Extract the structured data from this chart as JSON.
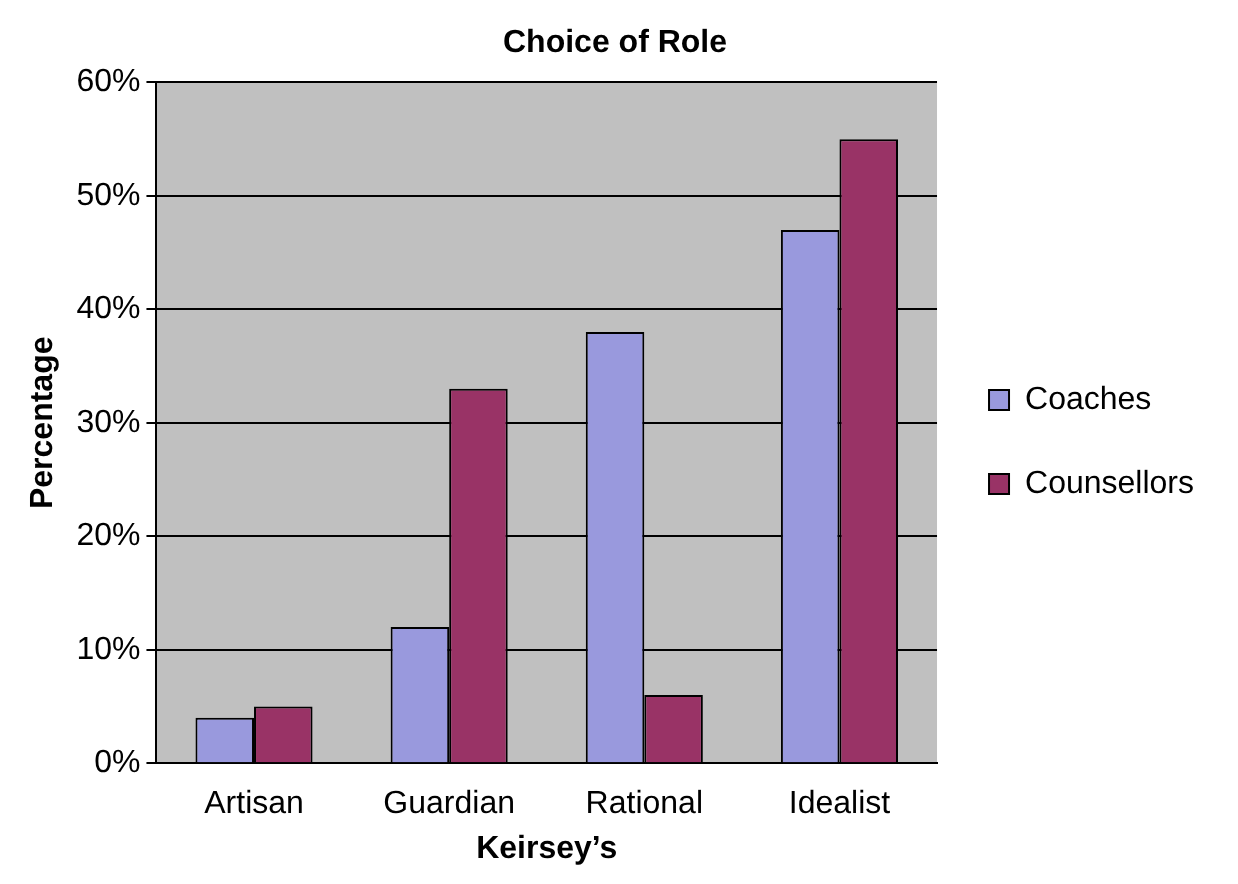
{
  "chart_data": {
    "type": "bar",
    "title": "Choice of Role",
    "xlabel": "Keirsey’s",
    "ylabel": "Percentage",
    "categories": [
      "Artisan",
      "Guardian",
      "Rational",
      "Idealist"
    ],
    "series": [
      {
        "name": "Coaches",
        "color": "#9999dd",
        "values": [
          4,
          12,
          38,
          47
        ]
      },
      {
        "name": "Counsellors",
        "color": "#993366",
        "values": [
          5,
          33,
          6,
          55
        ]
      }
    ],
    "ylim": [
      0,
      60
    ],
    "yticks": [
      {
        "value": 0,
        "label": "0%"
      },
      {
        "value": 10,
        "label": "10%"
      },
      {
        "value": 20,
        "label": "20%"
      },
      {
        "value": 30,
        "label": "30%"
      },
      {
        "value": 40,
        "label": "40%"
      },
      {
        "value": 50,
        "label": "50%"
      },
      {
        "value": 60,
        "label": "60%"
      }
    ],
    "grid": "y",
    "legend": "right"
  }
}
